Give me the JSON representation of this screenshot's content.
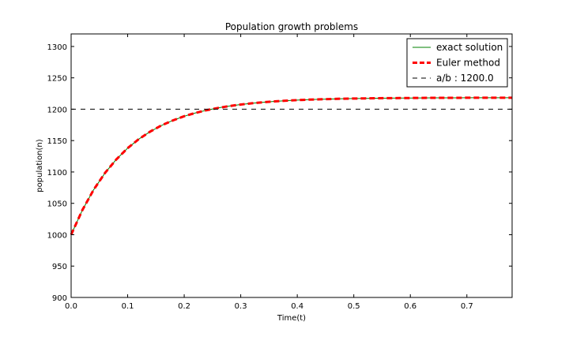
{
  "chart_data": {
    "type": "line",
    "title": "Population growth problems",
    "xlabel": "Time(t)",
    "ylabel": "population(n)",
    "xlim": [
      0.0,
      0.78
    ],
    "ylim": [
      900,
      1320
    ],
    "x_ticks": [
      0.0,
      0.1,
      0.2,
      0.3,
      0.4,
      0.5,
      0.6,
      0.7
    ],
    "x_tick_labels": [
      "0.0",
      "0.1",
      "0.2",
      "0.3",
      "0.4",
      "0.5",
      "0.6",
      "0.7"
    ],
    "y_ticks": [
      900,
      950,
      1000,
      1050,
      1100,
      1150,
      1200,
      1250,
      1300
    ],
    "y_tick_labels": [
      "900",
      "950",
      "1000",
      "1050",
      "1100",
      "1150",
      "1200",
      "1250",
      "1300"
    ],
    "grid": false,
    "legend_position": "top-right",
    "x": [
      0.0,
      0.02,
      0.04,
      0.06,
      0.08,
      0.1,
      0.12,
      0.14,
      0.16,
      0.18,
      0.2,
      0.22,
      0.24,
      0.26,
      0.28,
      0.3,
      0.32,
      0.34,
      0.36,
      0.38,
      0.4,
      0.42,
      0.44,
      0.46,
      0.48,
      0.5,
      0.52,
      0.54,
      0.56,
      0.58,
      0.6,
      0.62,
      0.64,
      0.66,
      0.68,
      0.7,
      0.72,
      0.74,
      0.76,
      0.78
    ],
    "series": [
      {
        "name": "exact solution",
        "color": "#008000",
        "style": "solid",
        "values": [
          1000,
          1039.5,
          1071.9,
          1098.4,
          1120.1,
          1137.9,
          1152.5,
          1164.4,
          1174.2,
          1182.2,
          1188.8,
          1194.1,
          1198.5,
          1202.1,
          1205.1,
          1207.5,
          1209.5,
          1211.1,
          1212.5,
          1213.6,
          1214.5,
          1215.2,
          1215.8,
          1216.3,
          1216.7,
          1217.0,
          1217.3,
          1217.5,
          1217.7,
          1217.8,
          1217.9,
          1218.0,
          1218.1,
          1218.2,
          1218.2,
          1218.3,
          1218.3,
          1218.3,
          1218.3,
          1218.3
        ]
      },
      {
        "name": "Euler method",
        "color": "#ff0000",
        "style": "dashed",
        "values": [
          1000,
          1039.5,
          1071.9,
          1098.4,
          1120.1,
          1137.9,
          1152.5,
          1164.4,
          1174.2,
          1182.2,
          1188.8,
          1194.1,
          1198.5,
          1202.1,
          1205.1,
          1207.5,
          1209.5,
          1211.1,
          1212.5,
          1213.6,
          1214.5,
          1215.2,
          1215.8,
          1216.3,
          1216.7,
          1217.0,
          1217.3,
          1217.5,
          1217.7,
          1217.8,
          1217.9,
          1218.0,
          1218.1,
          1218.2,
          1218.2,
          1218.3,
          1218.3,
          1218.3,
          1218.3,
          1218.3
        ]
      },
      {
        "name": "a/b : 1200.0",
        "color": "#000000",
        "style": "dashed",
        "constant": 1200.0
      }
    ]
  }
}
